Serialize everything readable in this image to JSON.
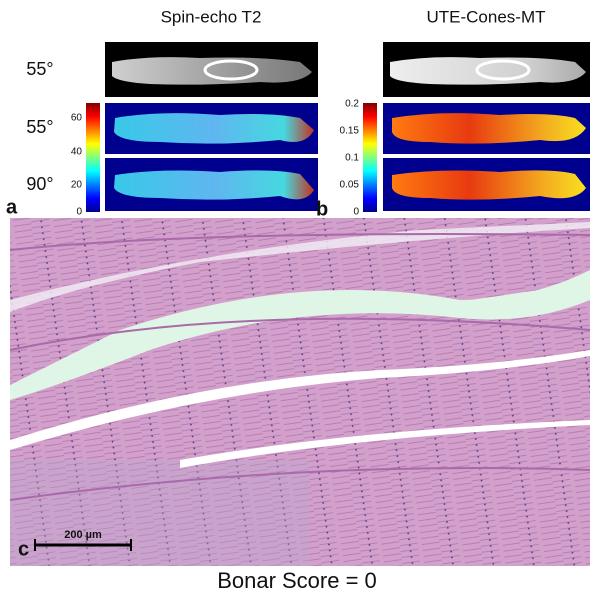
{
  "header": {
    "left_title": "Spin-echo T2",
    "right_title": "UTE-Cones-MT"
  },
  "row_labels": [
    "55°",
    "55°",
    "90°"
  ],
  "colorbar_a": {
    "ticks": [
      60,
      40,
      20,
      0
    ]
  },
  "colorbar_b": {
    "ticks": [
      0.2,
      0.15,
      0.1,
      0.05,
      0
    ]
  },
  "panel_labels": [
    "a",
    "b",
    "c"
  ],
  "scale_bar": "200 µm",
  "caption": "Bonar Score = 0"
}
